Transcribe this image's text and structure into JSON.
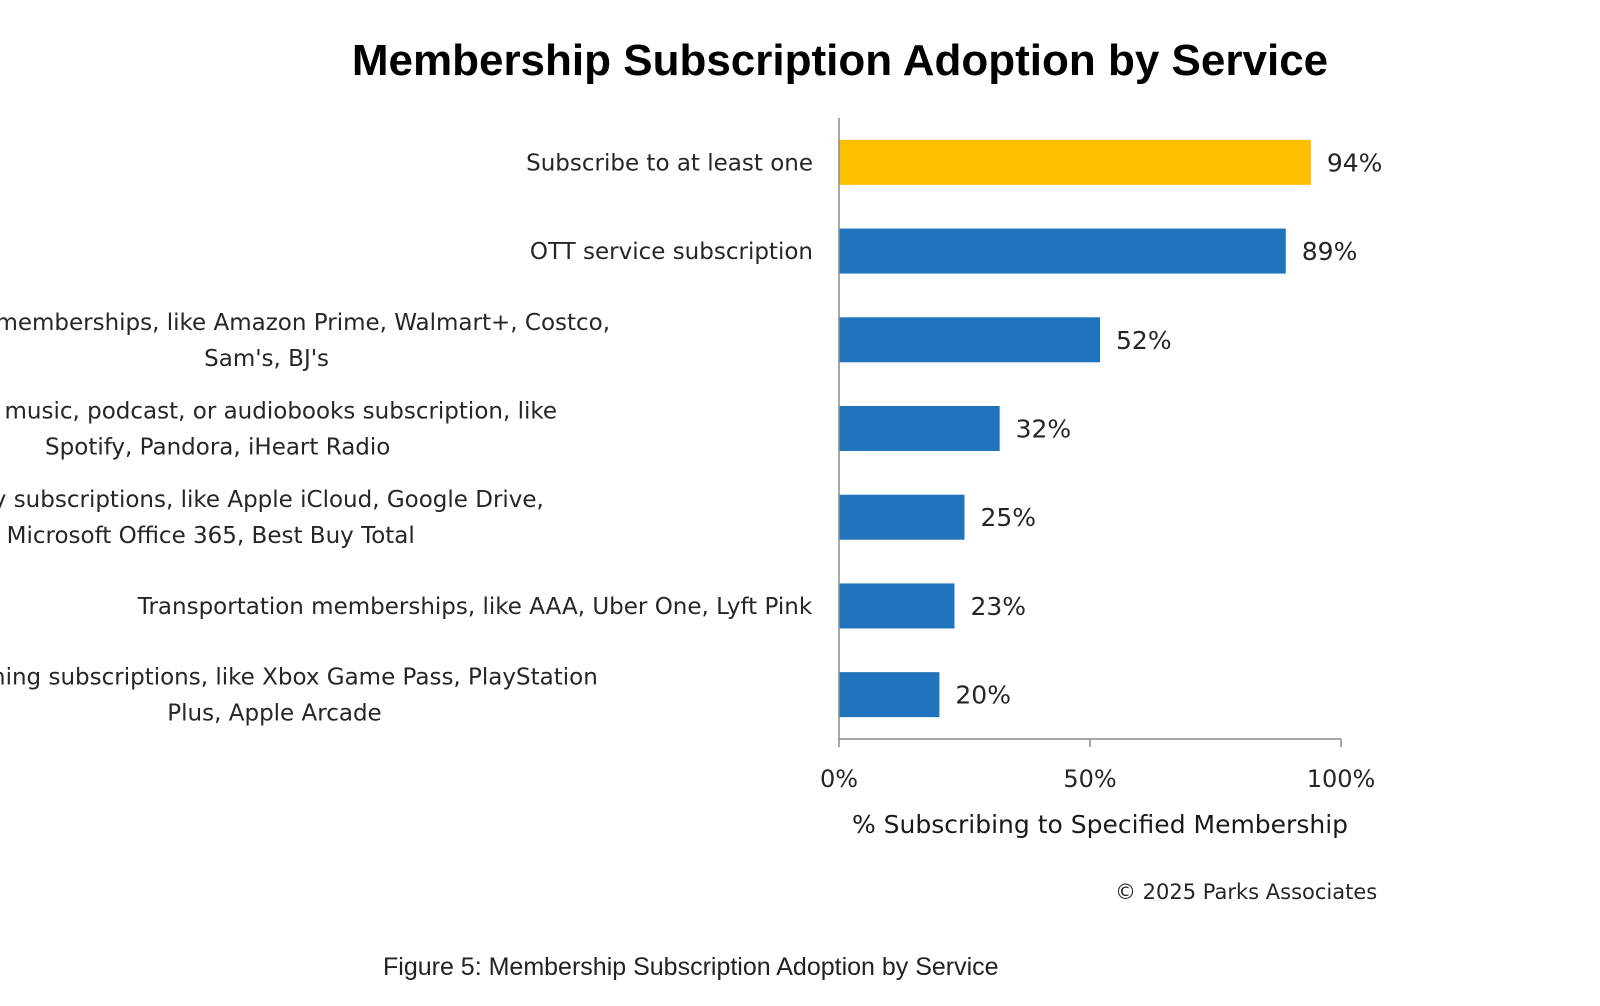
{
  "chart_data": {
    "type": "bar",
    "orientation": "horizontal",
    "title": "Membership Subscription Adoption by Service",
    "categories": [
      [
        "Subscribe to at least one"
      ],
      [
        "OTT service subscription"
      ],
      [
        "Retail memberships, like Amazon Prime, Walmart+, Costco,",
        "Sam's, BJ's"
      ],
      [
        "Streaming music, podcast, or audiobooks subscription, like",
        "Spotify, Pandora, iHeart Radio"
      ],
      [
        "Technology subscriptions, like Apple iCloud, Google Drive,",
        "Microsoft Office 365, Best Buy Total"
      ],
      [
        "Transportation memberships, like AAA, Uber One, Lyft Pink"
      ],
      [
        "Gaming subscriptions, like Xbox Game Pass, PlayStation",
        "Plus, Apple Arcade"
      ]
    ],
    "values": [
      94,
      89,
      52,
      32,
      25,
      23,
      20
    ],
    "value_labels": [
      "94%",
      "89%",
      "52%",
      "32%",
      "25%",
      "23%",
      "20%"
    ],
    "bar_colors": [
      "#FFC000",
      "#1F74BD",
      "#1F74BD",
      "#1F74BD",
      "#1F74BD",
      "#1F74BD",
      "#1F74BD"
    ],
    "xlim": [
      0,
      100
    ],
    "xticks": [
      0,
      50,
      100
    ],
    "xtick_labels": [
      "0%",
      "50%",
      "100%"
    ],
    "xlabel": "% Subscribing to Specified Membership",
    "ylabel": "",
    "grid": false,
    "legend": "none"
  },
  "copyright": "© 2025 Parks Associates",
  "caption": "Figure 5: Membership Subscription Adoption by Service"
}
